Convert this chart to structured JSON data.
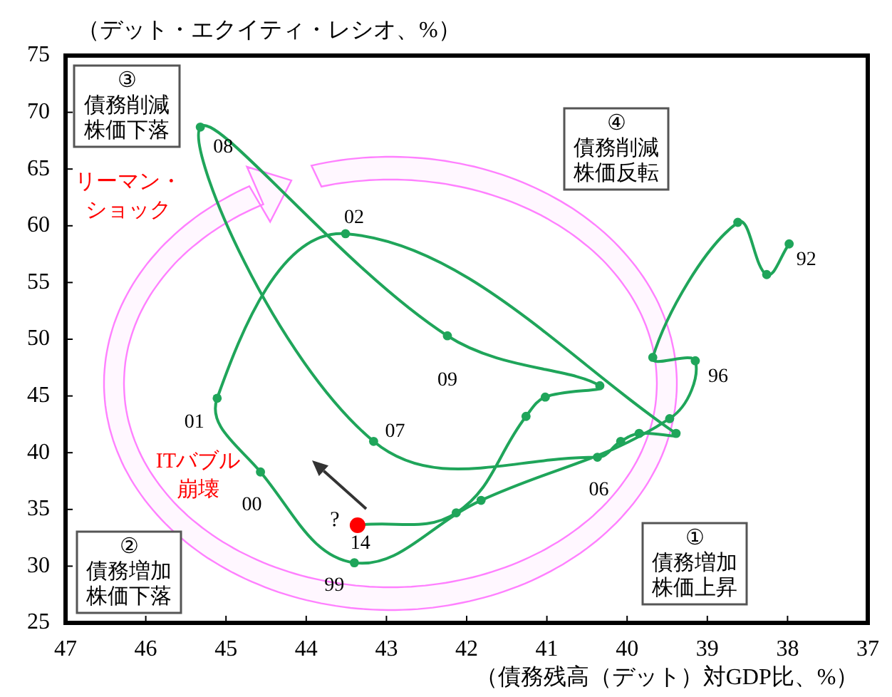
{
  "chart_data": {
    "type": "line",
    "xlabel": "（債務残高（デット）対GDP比、%）",
    "ylabel": "（デット・エクイティ・レシオ、%）",
    "x": [
      37.98,
      38.26,
      38.62,
      39.68,
      39.15,
      39.47,
      41.82,
      43.4,
      44.57,
      45.11,
      43.51,
      39.39,
      39.85,
      40.08,
      40.37,
      43.16,
      45.32,
      42.24,
      40.34,
      41.02,
      41.26,
      42.13,
      43.36
    ],
    "series": [
      {
        "color": "#1fa55a",
        "colors": [
          "#1fa55a",
          "#1fa55a",
          "#1fa55a",
          "#1fa55a",
          "#1fa55a",
          "#1fa55a",
          "#1fa55a",
          "#1fa55a",
          "#1fa55a",
          "#1fa55a",
          "#1fa55a",
          "#1fa55a",
          "#1fa55a",
          "#1fa55a",
          "#1fa55a",
          "#1fa55a",
          "#1fa55a",
          "#1fa55a",
          "#1fa55a",
          "#1fa55a",
          "#1fa55a",
          "#1fa55a",
          "#ff0000"
        ],
        "values": [
          58.4,
          55.7,
          60.3,
          48.4,
          48.1,
          43.0,
          35.8,
          30.3,
          38.3,
          44.8,
          59.3,
          41.7,
          41.7,
          41.0,
          39.6,
          41.0,
          68.7,
          50.3,
          45.9,
          44.9,
          43.2,
          34.7,
          33.6
        ]
      }
    ],
    "xlim": [
      47,
      37
    ],
    "ylim": [
      25,
      75
    ],
    "xticks": [
      47,
      46,
      45,
      44,
      43,
      42,
      41,
      40,
      39,
      38,
      37
    ],
    "yticks": [
      25,
      30,
      35,
      40,
      45,
      50,
      55,
      60,
      65,
      70,
      75
    ],
    "marker": "circle",
    "annotations": [
      "③債務削減株価下落",
      "④債務削減株価反転",
      "②債務増加株価下落",
      "①債務増加株価上昇",
      "リーマン・ショック",
      "ITバブル崩壊",
      "?",
      {
        "text": "92",
        "x": 37.98,
        "y": 58.4
      },
      {
        "text": "96",
        "x": 39.15,
        "y": 48.1
      },
      {
        "text": "99",
        "x": 43.4,
        "y": 30.3
      },
      {
        "text": "00",
        "x": 44.57,
        "y": 38.3
      },
      {
        "text": "01",
        "x": 45.11,
        "y": 44.8
      },
      {
        "text": "02",
        "x": 43.51,
        "y": 59.3
      },
      {
        "text": "06",
        "x": 40.37,
        "y": 39.6
      },
      {
        "text": "07",
        "x": 43.16,
        "y": 41.0
      },
      {
        "text": "08",
        "x": 45.32,
        "y": 68.7
      },
      {
        "text": "09",
        "x": 42.24,
        "y": 50.3
      },
      {
        "text": "14",
        "x": 43.36,
        "y": 33.6
      }
    ]
  }
}
